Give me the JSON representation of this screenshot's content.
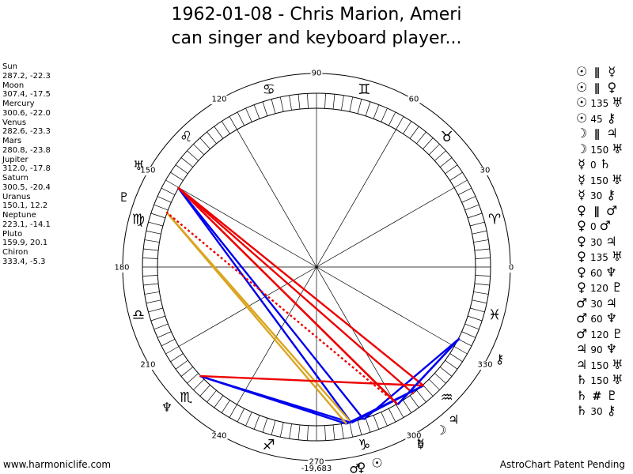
{
  "title": {
    "line1": "1962-01-08 - Chris Marion, Ameri",
    "line2": "can singer and keyboard player..."
  },
  "planet_list": [
    {
      "name": "Sun",
      "coords": "287.2, -22.3"
    },
    {
      "name": "Moon",
      "coords": "307.4, -17.5"
    },
    {
      "name": "Mercury",
      "coords": "300.6, -22.0"
    },
    {
      "name": "Venus",
      "coords": "282.6, -23.3"
    },
    {
      "name": "Mars",
      "coords": "280.8, -23.8"
    },
    {
      "name": "Jupiter",
      "coords": "312.0, -17.8"
    },
    {
      "name": "Saturn",
      "coords": "300.5, -20.4"
    },
    {
      "name": "Uranus",
      "coords": "150.1, 12.2"
    },
    {
      "name": "Neptune",
      "coords": "223.1, -14.1"
    },
    {
      "name": "Pluto",
      "coords": "159.9, 20.1"
    },
    {
      "name": "Chiron",
      "coords": "333.4, -5.3"
    }
  ],
  "aspects": [
    {
      "p1": "☉",
      "sym": "∥",
      "p2": "☿"
    },
    {
      "p1": "☉",
      "sym": "∥",
      "p2": "♀"
    },
    {
      "p1": "☉",
      "sym": "135",
      "p2": "♅"
    },
    {
      "p1": "☉",
      "sym": "45",
      "p2": "⚷"
    },
    {
      "p1": "☽",
      "sym": "∥",
      "p2": "♃"
    },
    {
      "p1": "☽",
      "sym": "150",
      "p2": "♅"
    },
    {
      "p1": "☿",
      "sym": "0",
      "p2": "♄"
    },
    {
      "p1": "☿",
      "sym": "150",
      "p2": "♅"
    },
    {
      "p1": "☿",
      "sym": "30",
      "p2": "⚷"
    },
    {
      "p1": "♀",
      "sym": "∥",
      "p2": "♂"
    },
    {
      "p1": "♀",
      "sym": "0",
      "p2": "♂"
    },
    {
      "p1": "♀",
      "sym": "30",
      "p2": "♃"
    },
    {
      "p1": "♀",
      "sym": "135",
      "p2": "♅"
    },
    {
      "p1": "♀",
      "sym": "60",
      "p2": "♆"
    },
    {
      "p1": "♀",
      "sym": "120",
      "p2": "♇"
    },
    {
      "p1": "♂",
      "sym": "30",
      "p2": "♃"
    },
    {
      "p1": "♂",
      "sym": "60",
      "p2": "♆"
    },
    {
      "p1": "♂",
      "sym": "120",
      "p2": "♇"
    },
    {
      "p1": "♃",
      "sym": "90",
      "p2": "♆"
    },
    {
      "p1": "♃",
      "sym": "150",
      "p2": "♅"
    },
    {
      "p1": "♄",
      "sym": "150",
      "p2": "♅"
    },
    {
      "p1": "♄",
      "sym": "#",
      "p2": "♇"
    },
    {
      "p1": "♄",
      "sym": "30",
      "p2": "⚷"
    }
  ],
  "wheel": {
    "angle_labels": [
      "0",
      "30",
      "60",
      "90",
      "120",
      "150",
      "180",
      "210",
      "240",
      "270",
      "300",
      "330"
    ],
    "sign_glyphs": [
      "♈",
      "♉",
      "♊",
      "♋",
      "♌",
      "♍",
      "♎",
      "♏",
      "♐",
      "♑",
      "♒",
      "♓"
    ],
    "bottom_value": "-19,683"
  },
  "chart_data": {
    "type": "wheel",
    "title": "1962-01-08 - Chris Marion, American singer and keyboard player...",
    "angle_range": [
      0,
      360
    ],
    "planets": [
      {
        "name": "Sun",
        "glyph": "☉",
        "longitude": 287.2,
        "declination": -22.3
      },
      {
        "name": "Moon",
        "glyph": "☽",
        "longitude": 307.4,
        "declination": -17.5
      },
      {
        "name": "Mercury",
        "glyph": "☿",
        "longitude": 300.6,
        "declination": -22.0
      },
      {
        "name": "Venus",
        "glyph": "♀",
        "longitude": 282.6,
        "declination": -23.3
      },
      {
        "name": "Mars",
        "glyph": "♂",
        "longitude": 280.8,
        "declination": -23.8
      },
      {
        "name": "Jupiter",
        "glyph": "♃",
        "longitude": 312.0,
        "declination": -17.8
      },
      {
        "name": "Saturn",
        "glyph": "♄",
        "longitude": 300.5,
        "declination": -20.4
      },
      {
        "name": "Uranus",
        "glyph": "♅",
        "longitude": 150.1,
        "declination": 12.2
      },
      {
        "name": "Neptune",
        "glyph": "♆",
        "longitude": 223.1,
        "declination": -14.1
      },
      {
        "name": "Pluto",
        "glyph": "♇",
        "longitude": 159.9,
        "declination": 20.1
      },
      {
        "name": "Chiron",
        "glyph": "⚷",
        "longitude": 333.4,
        "declination": -5.3
      }
    ],
    "aspect_lines": [
      {
        "from": "Sun",
        "to": "Uranus",
        "color": "#0000ee"
      },
      {
        "from": "Sun",
        "to": "Chiron",
        "color": "#0000ee"
      },
      {
        "from": "Moon",
        "to": "Uranus",
        "color": "#ee0000"
      },
      {
        "from": "Mercury",
        "to": "Uranus",
        "color": "#ee0000"
      },
      {
        "from": "Mercury",
        "to": "Chiron",
        "color": "#0000ee"
      },
      {
        "from": "Venus",
        "to": "Jupiter",
        "color": "#0000ee"
      },
      {
        "from": "Venus",
        "to": "Uranus",
        "color": "#0000ee"
      },
      {
        "from": "Venus",
        "to": "Neptune",
        "color": "#0000ee"
      },
      {
        "from": "Venus",
        "to": "Pluto",
        "color": "#daa520"
      },
      {
        "from": "Mars",
        "to": "Jupiter",
        "color": "#0000ee"
      },
      {
        "from": "Mars",
        "to": "Neptune",
        "color": "#0000ee"
      },
      {
        "from": "Mars",
        "to": "Pluto",
        "color": "#daa520"
      },
      {
        "from": "Jupiter",
        "to": "Neptune",
        "color": "#ee0000"
      },
      {
        "from": "Jupiter",
        "to": "Uranus",
        "color": "#ee0000"
      },
      {
        "from": "Saturn",
        "to": "Uranus",
        "color": "#ee0000"
      },
      {
        "from": "Saturn",
        "to": "Pluto",
        "color": "#ee0000",
        "dashed": true
      },
      {
        "from": "Saturn",
        "to": "Chiron",
        "color": "#0000ee"
      }
    ]
  },
  "footer": {
    "left": "www.harmoniclife.com",
    "right": "AstroChart Patent Pending"
  }
}
